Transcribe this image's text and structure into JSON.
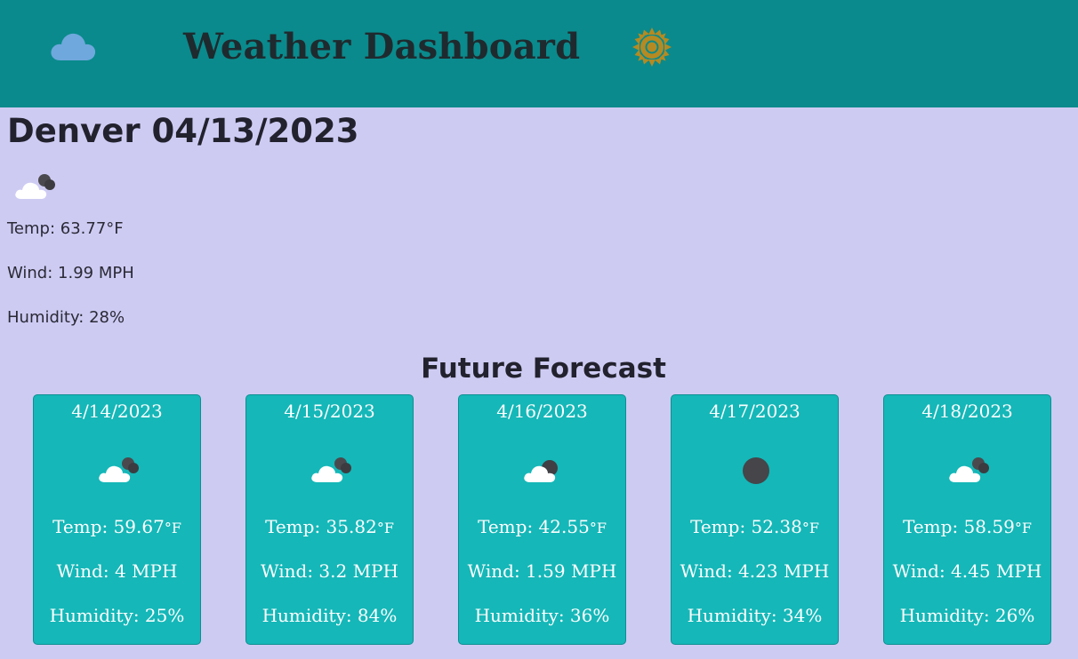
{
  "header": {
    "title": "Weather Dashboard",
    "logo_icon": "cloud-icon",
    "theme_icon": "sun-icon"
  },
  "current": {
    "title": "Denver 04/13/2023",
    "icon": "cloud-moon-icon",
    "temp": "Temp: 63.77°F",
    "wind": "Wind: 1.99 MPH",
    "humidity": "Humidity: 28%"
  },
  "forecast": {
    "title": "Future Forecast",
    "days": [
      {
        "date": "4/14/2023",
        "icon": "cloud-moon-icon",
        "temp": "Temp: 59.67",
        "unit": "°F",
        "wind": "Wind: 4 MPH",
        "humidity": "Humidity: 25%"
      },
      {
        "date": "4/15/2023",
        "icon": "cloud-moon-icon",
        "temp": "Temp: 35.82",
        "unit": "°F",
        "wind": "Wind: 3.2 MPH",
        "humidity": "Humidity: 84%"
      },
      {
        "date": "4/16/2023",
        "icon": "cloud-moon-icon",
        "temp": "Temp: 42.55",
        "unit": "°F",
        "wind": "Wind: 1.59 MPH",
        "humidity": "Humidity: 36%"
      },
      {
        "date": "4/17/2023",
        "icon": "moon-icon",
        "temp": "Temp: 52.38",
        "unit": "°F",
        "wind": "Wind: 4.23 MPH",
        "humidity": "Humidity: 34%"
      },
      {
        "date": "4/18/2023",
        "icon": "cloud-moon-icon",
        "temp": "Temp: 58.59",
        "unit": "°F",
        "wind": "Wind: 4.45 MPH",
        "humidity": "Humidity: 26%"
      }
    ]
  },
  "colors": {
    "header_bg": "#0a8a8c",
    "page_bg": "#cecbf3",
    "card_bg": "#15b7b8",
    "sun": "#b58a22",
    "logo_cloud": "#6fa8dc"
  }
}
